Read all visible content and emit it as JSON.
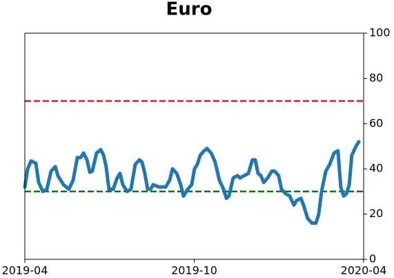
{
  "chart_data": {
    "type": "line",
    "title": "Euro",
    "x": [
      0,
      0.1,
      0.22,
      0.39,
      0.49,
      0.64,
      0.78,
      0.93,
      1.08,
      1.17,
      1.27,
      1.37,
      1.56,
      1.71,
      1.86,
      1.98,
      2.08,
      2.2,
      2.3,
      2.39,
      2.54,
      2.69,
      2.79,
      2.88,
      2.98,
      3.13,
      3.27,
      3.37,
      3.47,
      3.62,
      3.76,
      3.91,
      4.06,
      4.15,
      4.25,
      4.35,
      4.45,
      4.55,
      4.74,
      4.99,
      5.13,
      5.23,
      5.38,
      5.52,
      5.62,
      5.77,
      5.91,
      6.01,
      6.11,
      6.21,
      6.35,
      6.45,
      6.6,
      6.74,
      6.89,
      7.04,
      7.14,
      7.23,
      7.38,
      7.53,
      7.62,
      7.77,
      7.92,
      8.06,
      8.16,
      8.26,
      8.36,
      8.46,
      8.6,
      8.75,
      8.85,
      8.99,
      9.09,
      9.24,
      9.38,
      9.53,
      9.63,
      9.78,
      9.87,
      10.02,
      10.17,
      10.31,
      10.41,
      10.51,
      10.66,
      10.8,
      10.95,
      11.09,
      11.19,
      11.29,
      11.39,
      11.49,
      11.58,
      11.73,
      11.83
    ],
    "series": [
      {
        "color": "#1f77b4",
        "values": [
          32,
          40,
          43.5,
          42.5,
          34,
          30,
          31,
          39,
          41,
          37,
          35,
          33,
          31,
          35,
          45,
          45,
          47,
          44,
          38.5,
          39,
          47,
          48.5,
          46,
          41,
          31,
          31,
          36,
          38,
          33,
          30,
          31,
          42,
          44,
          43,
          38,
          31,
          31,
          33,
          32,
          32,
          35,
          40,
          38,
          33,
          28,
          31,
          33,
          40,
          42,
          46,
          48,
          49,
          47,
          43,
          35,
          31,
          27,
          28,
          36,
          37,
          36,
          37,
          38,
          44,
          44,
          38,
          37,
          34,
          36,
          39,
          39,
          37,
          31,
          29,
          28,
          24,
          26,
          27,
          24,
          18,
          16,
          16,
          20,
          30,
          39,
          42,
          47,
          48,
          32,
          28,
          29,
          33,
          46,
          50,
          52
        ]
      }
    ],
    "xlim": [
      0,
      12
    ],
    "xticks": [
      {
        "value": 0,
        "label": "2019-04"
      },
      {
        "value": 6,
        "label": "2019-10"
      },
      {
        "value": 12,
        "label": "2020-04"
      }
    ],
    "ylim": [
      0,
      100
    ],
    "yticks": [
      0,
      20,
      40,
      60,
      80,
      100
    ],
    "yaxis_side": "right",
    "hlines": [
      {
        "value": 70,
        "color": "#e41a1c"
      },
      {
        "value": 30,
        "color": "#008000"
      }
    ]
  }
}
